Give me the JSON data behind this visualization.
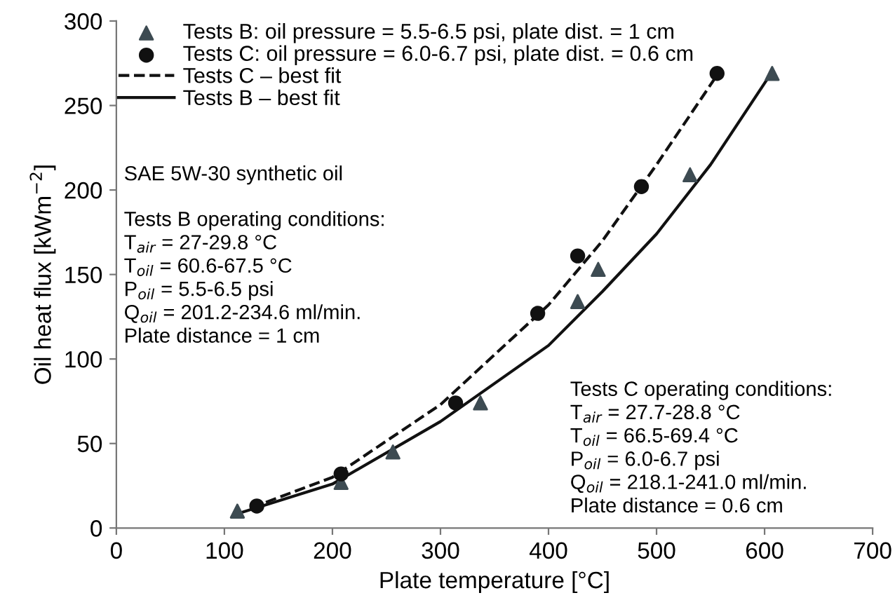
{
  "chart_data": {
    "type": "scatter",
    "xlabel": "Plate temperature [°C]",
    "ylabel": "Oil heat flux [kWm$^{−2}$]",
    "xlim": [
      0,
      700
    ],
    "ylim": [
      0,
      300
    ],
    "xticks": [
      0,
      100,
      200,
      300,
      400,
      500,
      600,
      700
    ],
    "yticks": [
      0,
      50,
      100,
      150,
      200,
      250,
      300
    ],
    "grid": false,
    "legend": "top left",
    "series": [
      {
        "name": "Tests B: oil pressure = 5.5-6.5 psi, plate dist. = 1 cm",
        "marker": "triangle",
        "color": "#3d4b52",
        "x": [
          112,
          208,
          256,
          337,
          427,
          446,
          531,
          607
        ],
        "values": [
          10,
          27,
          45,
          74,
          134,
          153,
          209,
          269
        ]
      },
      {
        "name": "Tests C: oil pressure = 6.0-6.7 psi, plate dist. = 0.6 cm",
        "marker": "circle",
        "color": "#111111",
        "x": [
          130,
          208,
          314,
          390,
          427,
          486,
          556
        ],
        "values": [
          13,
          32,
          74,
          127,
          161,
          202,
          269
        ]
      },
      {
        "name": "Tests C – best fit",
        "type": "line",
        "line_style": "dashed",
        "color": "#111111",
        "x": [
          125,
          200,
          300,
          400,
          450,
          500,
          555
        ],
        "values": [
          12,
          30,
          73,
          132,
          170,
          215,
          267
        ]
      },
      {
        "name": "Tests B – best fit",
        "type": "line",
        "line_style": "solid",
        "color": "#111111",
        "x": [
          110,
          200,
          300,
          400,
          450,
          500,
          550,
          607
        ],
        "values": [
          8,
          26,
          63,
          108,
          140,
          174,
          215,
          270
        ]
      }
    ],
    "annotations": [
      "SAE 5W-30 synthetic oil",
      "Tests B operating conditions:",
      "T$_{air}$ = 27-29.8 °C",
      "T$_{oil}$ = 60.6-67.5 °C",
      "P$_{oil}$ = 5.5-6.5 psi",
      "Q$_{oil}$ = 201.2-234.6 ml/min.",
      "Plate distance = 1 cm",
      "Tests C operating conditions:",
      "T$_{air}$ = 27.7-28.8 °C",
      "T$_{oil}$ = 66.5-69.4 °C",
      "P$_{oil}$ = 6.0-6.7 psi",
      "Q$_{oil}$ = 218.1-241.0 ml/min.",
      "Plate distance = 0.6 cm"
    ]
  }
}
